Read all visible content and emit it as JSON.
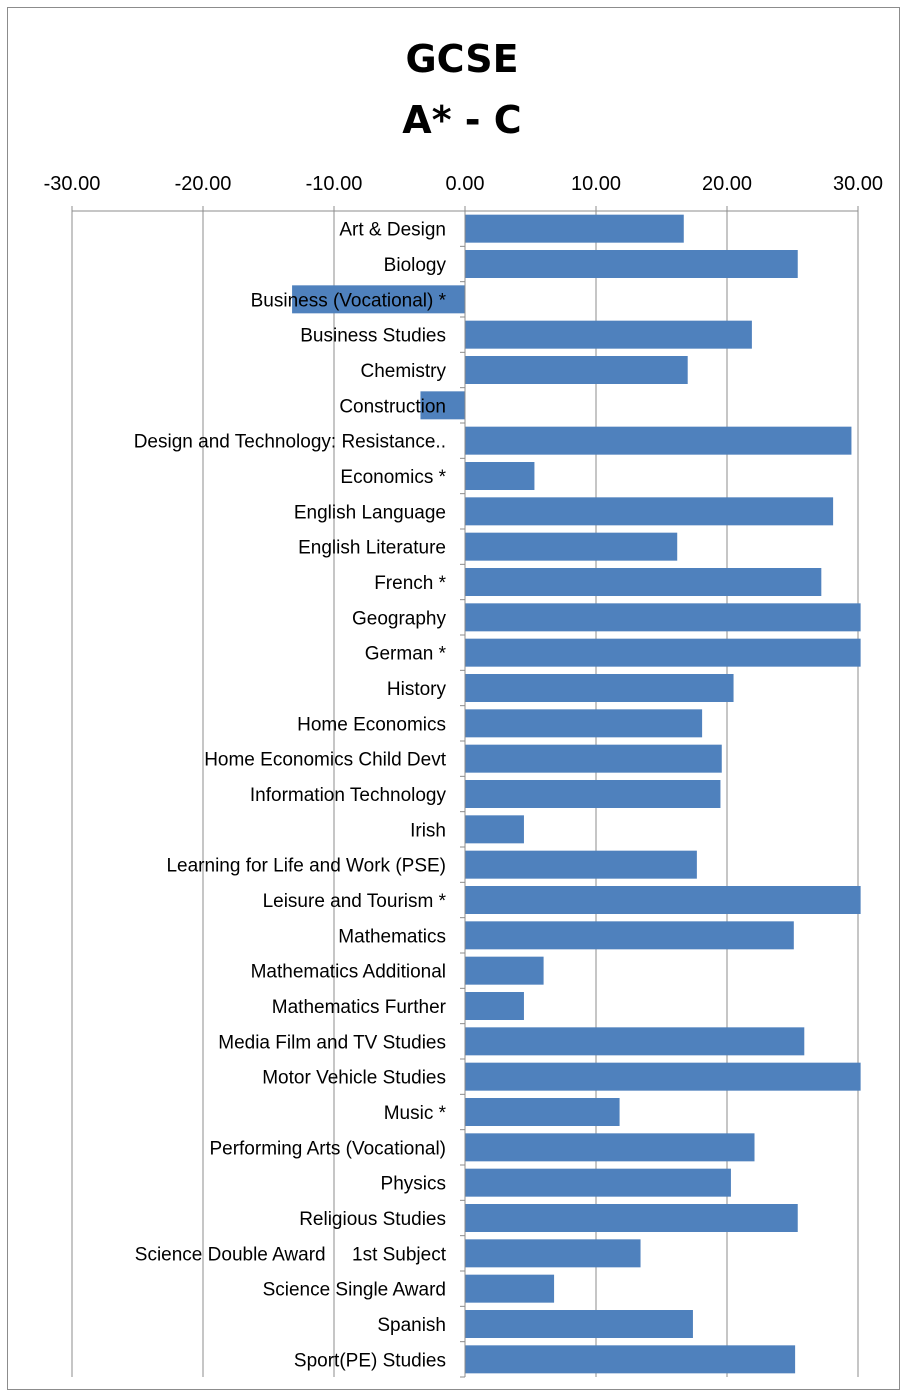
{
  "chart_data": {
    "type": "bar",
    "orientation": "horizontal",
    "title": [
      "GCSE",
      "A* - C"
    ],
    "xlim": [
      -30,
      30
    ],
    "x_ticks": [
      "-30.00",
      "-20.00",
      "-10.00",
      "0.00",
      "10.00",
      "20.00",
      "30.00"
    ],
    "axis_position": "top",
    "grid": true,
    "bar_color": "#4f81bd",
    "categories": [
      "Art & Design",
      "Biology",
      "Business (Vocational) *",
      "Business Studies",
      "Chemistry",
      "Construction",
      "Design and Technology: Resistance..",
      "Economics *",
      "English Language",
      "English Literature",
      "French *",
      "Geography",
      "German *",
      "History",
      "Home Economics",
      "Home Economics Child Devt",
      "Information Technology",
      "Irish",
      "Learning for Life and Work (PSE)",
      "Leisure and Tourism *",
      "Mathematics",
      "Mathematics Additional",
      "Mathematics Further",
      "Media Film and TV Studies",
      "Motor Vehicle Studies",
      "Music *",
      "Performing Arts (Vocational)",
      "Physics",
      "Religious Studies",
      "Science Double Award     1st Subject",
      "Science Single Award",
      "Spanish",
      "Sport(PE) Studies"
    ],
    "values": [
      16.7,
      25.4,
      -13.2,
      21.9,
      17.0,
      -3.4,
      29.5,
      5.3,
      28.1,
      16.2,
      27.2,
      30.2,
      30.2,
      20.5,
      18.1,
      19.6,
      19.5,
      4.5,
      17.7,
      30.2,
      25.1,
      6.0,
      4.5,
      25.9,
      30.2,
      11.8,
      22.1,
      20.3,
      25.4,
      13.4,
      6.8,
      17.4,
      25.2
    ]
  }
}
